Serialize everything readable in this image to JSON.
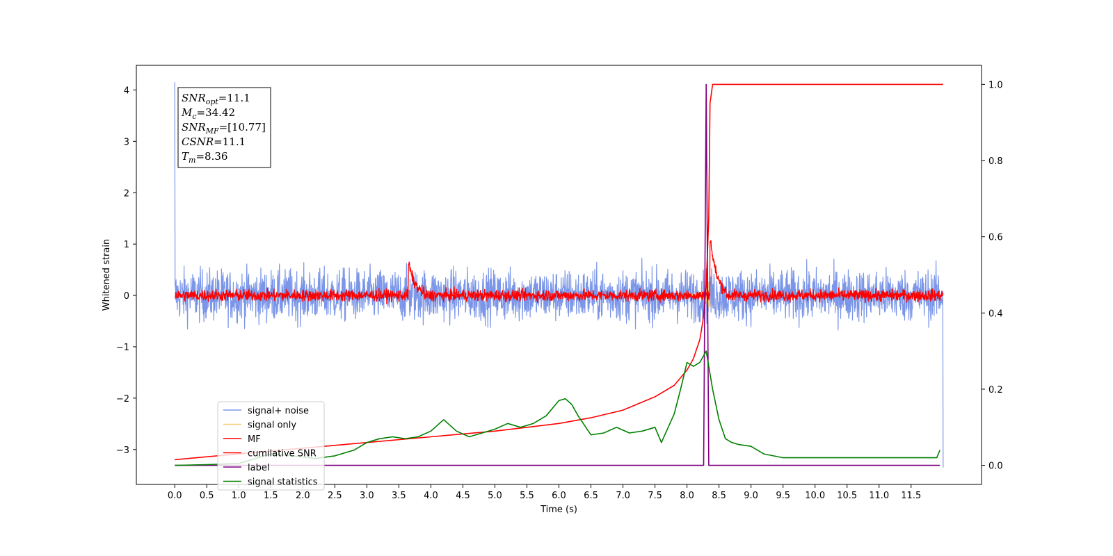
{
  "chart_data": {
    "type": "line",
    "xlabel": "Time (s)",
    "ylabel_left": "Whitened strain",
    "xlim": [
      -0.6,
      12.6
    ],
    "ylim_left": [
      -3.68,
      4.48
    ],
    "ylim_right": [
      -0.05,
      1.05
    ],
    "xticks": [
      "0.0",
      "0.5",
      "1.0",
      "1.5",
      "2.0",
      "2.5",
      "3.0",
      "3.5",
      "4.0",
      "4.5",
      "5.0",
      "5.5",
      "6.0",
      "6.5",
      "7.0",
      "7.5",
      "8.0",
      "8.5",
      "9.0",
      "9.5",
      "10.0",
      "10.5",
      "11.0",
      "11.5"
    ],
    "yticks_left": [
      "4",
      "3",
      "2",
      "1",
      "0",
      "−1",
      "−2",
      "−3"
    ],
    "yticks_right": [
      "1.0",
      "0.8",
      "0.6",
      "0.4",
      "0.2",
      "0.0"
    ],
    "grid": false,
    "legend_position": "lower-left",
    "info_box": {
      "lines": [
        {
          "base": "SNR",
          "sub": "opt",
          "value": "=11.1"
        },
        {
          "base": "M",
          "sub": "c",
          "value": "=34.42"
        },
        {
          "base": "SNR",
          "sub": "MF",
          "value": "=[10.77]"
        },
        {
          "base": "CSNR",
          "sub": "",
          "value": "=11.1"
        },
        {
          "base": "T",
          "sub": "m",
          "value": "=8.36"
        }
      ]
    },
    "series": [
      {
        "name": "signal+ noise",
        "color": "#7b96e8",
        "axis": "left",
        "style": "noise",
        "noise_amplitude": 0.45,
        "x_range": [
          0,
          12.0
        ],
        "spikes": [
          {
            "x": 0.0,
            "y": 4.15
          },
          {
            "x": 12.0,
            "y": -3.35
          }
        ]
      },
      {
        "name": "signal only",
        "color": "#f5c97a",
        "axis": "left",
        "style": "chirp",
        "merger_time": 8.36
      },
      {
        "name": "MF",
        "color": "#ff0000",
        "axis": "left",
        "style": "noise",
        "noise_amplitude": 0.1,
        "x_range": [
          0,
          12.0
        ],
        "bumps": [
          {
            "x": 3.65,
            "y": 0.65
          },
          {
            "x": 8.36,
            "y": 1.15
          }
        ]
      },
      {
        "name": "cumilative SNR",
        "color": "#ff0000",
        "axis": "right",
        "x": [
          0.0,
          1.0,
          2.0,
          3.0,
          4.0,
          5.0,
          6.0,
          6.5,
          7.0,
          7.5,
          7.8,
          8.0,
          8.1,
          8.2,
          8.25,
          8.3,
          8.34,
          8.36,
          8.4,
          12.0
        ],
        "y": [
          0.015,
          0.03,
          0.045,
          0.06,
          0.075,
          0.09,
          0.11,
          0.125,
          0.145,
          0.18,
          0.21,
          0.25,
          0.28,
          0.33,
          0.38,
          0.47,
          0.65,
          0.95,
          1.0,
          1.0
        ]
      },
      {
        "name": "label",
        "color": "#800080",
        "axis": "right",
        "x": [
          0.0,
          8.26,
          8.3,
          8.34,
          11.95
        ],
        "y": [
          0.0,
          0.0,
          1.0,
          0.0,
          0.0
        ]
      },
      {
        "name": "signal statistics",
        "color": "#008000",
        "axis": "right",
        "x": [
          0.0,
          0.5,
          1.0,
          1.5,
          2.0,
          2.2,
          2.5,
          2.8,
          3.0,
          3.2,
          3.4,
          3.6,
          3.8,
          4.0,
          4.2,
          4.4,
          4.6,
          4.8,
          5.0,
          5.2,
          5.4,
          5.6,
          5.8,
          6.0,
          6.1,
          6.2,
          6.3,
          6.5,
          6.7,
          6.9,
          7.1,
          7.3,
          7.5,
          7.6,
          7.8,
          7.9,
          8.0,
          8.1,
          8.2,
          8.3,
          8.4,
          8.5,
          8.6,
          8.7,
          8.8,
          9.0,
          9.2,
          9.5,
          10.0,
          10.5,
          11.0,
          11.5,
          11.9,
          11.95
        ],
        "y": [
          0.0,
          0.002,
          0.005,
          0.03,
          0.022,
          0.018,
          0.025,
          0.04,
          0.06,
          0.07,
          0.075,
          0.07,
          0.075,
          0.09,
          0.12,
          0.09,
          0.075,
          0.085,
          0.095,
          0.11,
          0.1,
          0.11,
          0.13,
          0.17,
          0.175,
          0.16,
          0.13,
          0.08,
          0.085,
          0.1,
          0.085,
          0.09,
          0.1,
          0.06,
          0.135,
          0.2,
          0.27,
          0.26,
          0.27,
          0.3,
          0.2,
          0.12,
          0.07,
          0.06,
          0.055,
          0.05,
          0.03,
          0.02,
          0.02,
          0.02,
          0.02,
          0.02,
          0.02,
          0.04
        ]
      }
    ]
  }
}
